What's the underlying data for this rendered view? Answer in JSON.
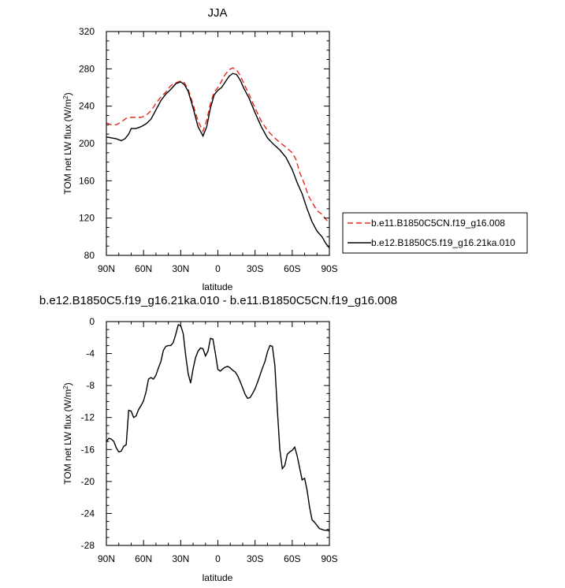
{
  "chart_data": [
    {
      "type": "line",
      "title": "JJA",
      "xlabel": "latitude",
      "ylabel": "TOM net LW flux (W/m",
      "ylabel_sup": "2",
      "ylabel_close": ")",
      "xlim": [
        90,
        -90
      ],
      "ylim": [
        80,
        320
      ],
      "xticks": [
        90,
        60,
        30,
        0,
        -30,
        -60,
        -90
      ],
      "xtick_labels": [
        "90N",
        "60N",
        "30N",
        "0",
        "30S",
        "60S",
        "90S"
      ],
      "yticks": [
        80,
        120,
        160,
        200,
        240,
        280,
        320
      ],
      "ytick_labels": [
        "80",
        "120",
        "160",
        "200",
        "240",
        "280",
        "320"
      ],
      "legend": "outside-right",
      "series": [
        {
          "name": "b.e11.B1850C5CN.f19_g16.008",
          "color": "#e8281e",
          "dash": "dashed",
          "x": [
            90,
            86,
            82,
            78,
            74,
            70,
            66,
            62,
            58,
            54,
            50,
            46,
            42,
            38,
            34,
            30,
            27,
            24,
            20,
            16,
            12,
            9,
            6,
            3,
            0,
            -3,
            -6,
            -9,
            -12,
            -15,
            -18,
            -21,
            -25,
            -30,
            -35,
            -40,
            -45,
            -50,
            -55,
            -60,
            -63,
            -66,
            -70,
            -73,
            -76,
            -80,
            -84,
            -87,
            -90
          ],
          "y": [
            222,
            220,
            220,
            223,
            227,
            228,
            228,
            228,
            230,
            235,
            243,
            250,
            255,
            262,
            265,
            267,
            265,
            258,
            242,
            224,
            213,
            225,
            243,
            255,
            260,
            267,
            274,
            279,
            281,
            279,
            273,
            264,
            253,
            238,
            224,
            214,
            207,
            201,
            196,
            190,
            183,
            169,
            156,
            144,
            137,
            128,
            124,
            119,
            114
          ]
        },
        {
          "name": "b.e12.B1850C5.f19_g16.21ka.010",
          "color": "#000000",
          "dash": "solid",
          "x": [
            90,
            86,
            82,
            78,
            75,
            72,
            70,
            66,
            62,
            58,
            54,
            50,
            46,
            42,
            38,
            34,
            30,
            27,
            24,
            20,
            16,
            12,
            9,
            6,
            3,
            0,
            -3,
            -6,
            -9,
            -12,
            -15,
            -18,
            -21,
            -25,
            -30,
            -35,
            -40,
            -45,
            -50,
            -55,
            -60,
            -64,
            -68,
            -72,
            -76,
            -80,
            -84,
            -87,
            -90
          ],
          "y": [
            207,
            206,
            205,
            203,
            205,
            210,
            216,
            216,
            218,
            221,
            226,
            236,
            246,
            253,
            258,
            264,
            266,
            263,
            256,
            238,
            218,
            208,
            218,
            238,
            252,
            257,
            260,
            266,
            272,
            275,
            274,
            268,
            259,
            249,
            233,
            218,
            206,
            199,
            193,
            185,
            172,
            158,
            146,
            130,
            116,
            106,
            100,
            93,
            88
          ]
        }
      ]
    },
    {
      "type": "line",
      "title": "b.e12.B1850C5.f19_g16.21ka.010 - b.e11.B1850C5CN.f19_g16.008",
      "xlabel": "latitude",
      "ylabel": "TOM net LW flux (W/m",
      "ylabel_sup": "2",
      "ylabel_close": ")",
      "xlim": [
        90,
        -90
      ],
      "ylim": [
        -28,
        0
      ],
      "xticks": [
        90,
        60,
        30,
        0,
        -30,
        -60,
        -90
      ],
      "xtick_labels": [
        "90N",
        "60N",
        "30N",
        "0",
        "30S",
        "60S",
        "90S"
      ],
      "yticks": [
        0,
        -4,
        -8,
        -12,
        -16,
        -20,
        -24,
        -28
      ],
      "ytick_labels": [
        "0",
        "-4",
        "-8",
        "-12",
        "-16",
        "-20",
        "-24",
        "-28"
      ],
      "series": [
        {
          "color": "#000000",
          "dash": "solid",
          "x": [
            90,
            88,
            86,
            84,
            82,
            80,
            78,
            76,
            74,
            72,
            70,
            68,
            66,
            64,
            62,
            60,
            58,
            56,
            54,
            52,
            50,
            48,
            46,
            44,
            42,
            40,
            38,
            36,
            34,
            32,
            30,
            28,
            26,
            24,
            22,
            20,
            18,
            16,
            14,
            12,
            10,
            8,
            6,
            4,
            2,
            0,
            -2,
            -4,
            -6,
            -8,
            -10,
            -12,
            -14,
            -16,
            -18,
            -20,
            -22,
            -24,
            -26,
            -28,
            -30,
            -32,
            -34,
            -36,
            -38,
            -40,
            -42,
            -44,
            -46,
            -48,
            -50,
            -52,
            -54,
            -56,
            -58,
            -60,
            -62,
            -64,
            -66,
            -68,
            -70,
            -72,
            -74,
            -76,
            -78,
            -80,
            -82,
            -84,
            -86,
            -88,
            -90
          ],
          "y": [
            -15.0,
            -14.6,
            -14.7,
            -15.0,
            -15.8,
            -16.3,
            -16.2,
            -15.6,
            -15.4,
            -11.1,
            -11.2,
            -12.0,
            -11.8,
            -11.0,
            -10.5,
            -9.9,
            -8.8,
            -7.2,
            -7.0,
            -7.2,
            -6.7,
            -5.8,
            -5.0,
            -3.6,
            -3.1,
            -3.0,
            -3.0,
            -2.6,
            -1.6,
            -0.4,
            -0.5,
            -1.5,
            -4.2,
            -6.5,
            -7.7,
            -5.9,
            -4.5,
            -3.7,
            -3.3,
            -3.4,
            -4.3,
            -3.7,
            -2.1,
            -2.2,
            -4.0,
            -6.0,
            -6.2,
            -5.9,
            -5.7,
            -5.6,
            -5.8,
            -6.1,
            -6.3,
            -6.8,
            -7.5,
            -8.3,
            -9.1,
            -9.6,
            -9.5,
            -9.0,
            -8.4,
            -7.6,
            -6.7,
            -5.8,
            -5.0,
            -3.8,
            -3.0,
            -3.1,
            -5.5,
            -11.0,
            -16.0,
            -18.4,
            -18.0,
            -16.6,
            -16.3,
            -16.1,
            -15.7,
            -16.8,
            -18.3,
            -19.8,
            -19.6,
            -21.1,
            -23.2,
            -24.8,
            -25.1,
            -25.5,
            -25.9,
            -26.0,
            -26.1,
            -26.1,
            -26.2
          ]
        }
      ]
    }
  ]
}
